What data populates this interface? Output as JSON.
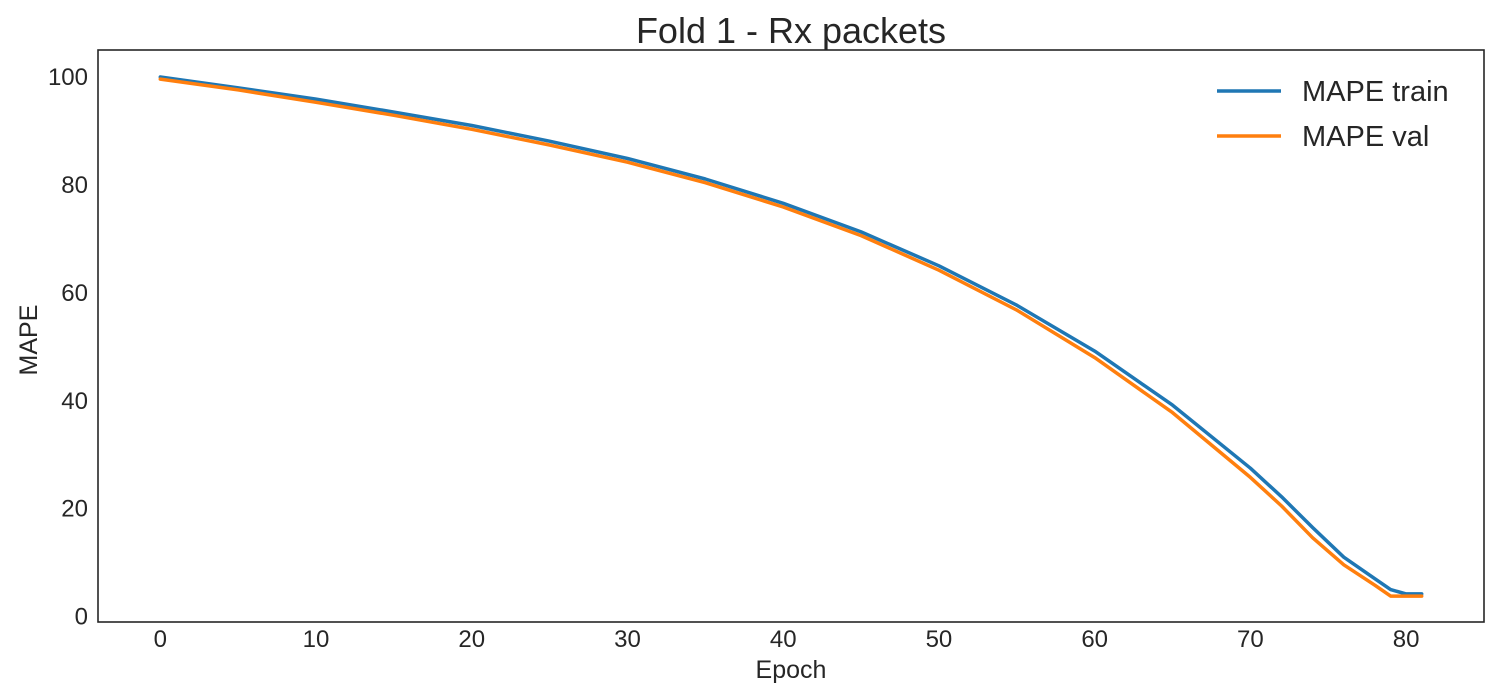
{
  "chart_data": {
    "type": "line",
    "title": "Fold 1 - Rx packets",
    "xlabel": "Epoch",
    "ylabel": "MAPE",
    "xlim": [
      -4,
      85
    ],
    "ylim": [
      -1,
      105
    ],
    "xticks": [
      0,
      10,
      20,
      30,
      40,
      50,
      60,
      70,
      80
    ],
    "yticks": [
      0,
      20,
      40,
      60,
      80,
      100
    ],
    "grid": false,
    "legend": "top-right",
    "series": [
      {
        "name": "MAPE train",
        "color": "#1f77b4",
        "x": [
          0,
          5,
          10,
          15,
          20,
          25,
          30,
          35,
          40,
          45,
          50,
          55,
          60,
          65,
          70,
          72,
          74,
          76,
          78,
          79,
          80,
          81
        ],
        "y": [
          100,
          98,
          95.9,
          93.5,
          91,
          88.1,
          84.9,
          81.1,
          76.6,
          71.3,
          65,
          57.7,
          49.2,
          39.2,
          27.5,
          22.2,
          16.5,
          11,
          7,
          5,
          4.2,
          4.2
        ]
      },
      {
        "name": "MAPE val",
        "color": "#ff7f0e",
        "x": [
          0,
          5,
          10,
          15,
          20,
          25,
          30,
          35,
          40,
          45,
          50,
          55,
          60,
          65,
          70,
          72,
          74,
          76,
          78,
          79,
          80,
          81
        ],
        "y": [
          99.6,
          97.6,
          95.3,
          92.9,
          90.3,
          87.4,
          84.2,
          80.4,
          75.9,
          70.6,
          64.2,
          56.8,
          48,
          37.8,
          25.8,
          20.5,
          14.6,
          9.6,
          5.8,
          3.8,
          3.8,
          3.8
        ]
      }
    ]
  }
}
